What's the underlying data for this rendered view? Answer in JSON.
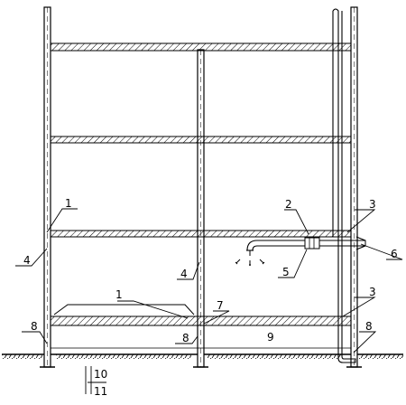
{
  "callouts": [
    {
      "id": "label-1-upper",
      "text": "1"
    },
    {
      "id": "label-1-lower",
      "text": "1"
    },
    {
      "id": "label-2",
      "text": "2"
    },
    {
      "id": "label-3-upper",
      "text": "3"
    },
    {
      "id": "label-3-lower",
      "text": "3"
    },
    {
      "id": "label-4-left",
      "text": "4"
    },
    {
      "id": "label-4-center",
      "text": "4"
    },
    {
      "id": "label-5",
      "text": "5"
    },
    {
      "id": "label-6",
      "text": "6"
    },
    {
      "id": "label-7",
      "text": "7"
    },
    {
      "id": "label-8-left",
      "text": "8"
    },
    {
      "id": "label-8-center",
      "text": "8"
    },
    {
      "id": "label-8-right",
      "text": "8"
    },
    {
      "id": "label-9",
      "text": "9"
    },
    {
      "id": "label-10",
      "text": "10"
    },
    {
      "id": "label-11",
      "text": "11"
    }
  ]
}
